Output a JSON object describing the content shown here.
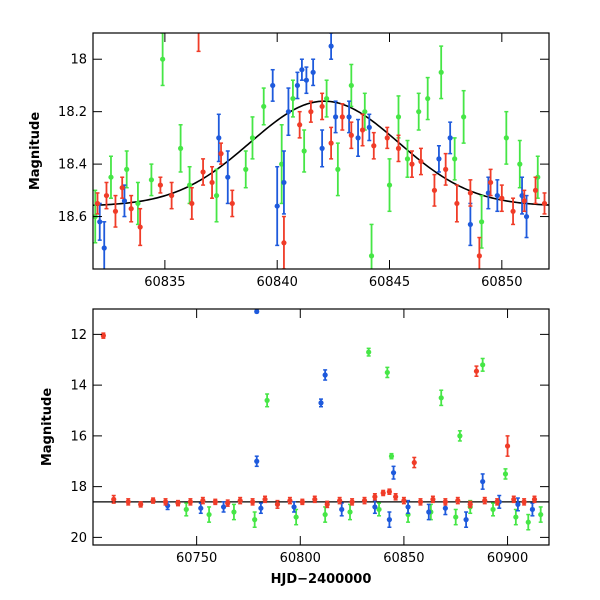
{
  "colors": {
    "red": "#f03c28",
    "blue": "#1e5adc",
    "green": "#46e646",
    "model": "#000000",
    "frame": "#000000"
  },
  "chart_data": [
    {
      "type": "scatter",
      "panel": "top",
      "title": "",
      "xlabel": "",
      "ylabel": "Magnitude",
      "xlim": [
        60831.8,
        60852.1
      ],
      "ylim": [
        18.8,
        17.9
      ],
      "y_inverted": true,
      "grid": false,
      "xticks": [
        60835,
        60840,
        60845,
        60850
      ],
      "xtick_labels": [
        "60835",
        "60840",
        "60845",
        "60850"
      ],
      "yticks": [
        18,
        18.2,
        18.4,
        18.6
      ],
      "ytick_labels": [
        "18",
        "18.2",
        "18.4",
        "18.6"
      ],
      "model_curve": {
        "color": "black",
        "peak_x": 60842.1,
        "peak_mag": 18.16,
        "base_mag": 18.56,
        "width": 3.3
      },
      "series": [
        {
          "color": "red",
          "points": [
            [
              60832.0,
              18.55,
              0.04
            ],
            [
              60832.4,
              18.52,
              0.05
            ],
            [
              60832.8,
              18.58,
              0.06
            ],
            [
              60833.1,
              18.49,
              0.04
            ],
            [
              60833.5,
              18.57,
              0.05
            ],
            [
              60833.9,
              18.64,
              0.07
            ],
            [
              60834.8,
              18.48,
              0.03
            ],
            [
              60835.3,
              18.52,
              0.05
            ],
            [
              60836.2,
              18.55,
              0.06
            ],
            [
              60836.5,
              17.85,
              0.12
            ],
            [
              60836.7,
              18.43,
              0.05
            ],
            [
              60837.1,
              18.47,
              0.06
            ],
            [
              60837.5,
              18.36,
              0.04
            ],
            [
              60838.0,
              18.55,
              0.05
            ],
            [
              60840.3,
              18.7,
              0.1
            ],
            [
              60841.0,
              18.25,
              0.05
            ],
            [
              60841.5,
              18.2,
              0.04
            ],
            [
              60842.0,
              18.18,
              0.05
            ],
            [
              60842.4,
              18.32,
              0.06
            ],
            [
              60842.9,
              18.22,
              0.05
            ],
            [
              60843.3,
              18.29,
              0.05
            ],
            [
              60843.8,
              18.27,
              0.06
            ],
            [
              60844.3,
              18.33,
              0.05
            ],
            [
              60844.9,
              18.3,
              0.04
            ],
            [
              60845.4,
              18.34,
              0.05
            ],
            [
              60846.0,
              18.4,
              0.05
            ],
            [
              60846.4,
              18.39,
              0.05
            ],
            [
              60847.0,
              18.5,
              0.06
            ],
            [
              60847.5,
              18.42,
              0.06
            ],
            [
              60848.0,
              18.55,
              0.07
            ],
            [
              60848.6,
              18.51,
              0.05
            ],
            [
              60849.0,
              18.75,
              0.07
            ],
            [
              60849.5,
              18.47,
              0.05
            ],
            [
              60850.0,
              18.53,
              0.05
            ],
            [
              60850.5,
              18.58,
              0.05
            ],
            [
              60851.0,
              18.54,
              0.04
            ],
            [
              60851.5,
              18.5,
              0.05
            ],
            [
              60851.9,
              18.55,
              0.04
            ]
          ]
        },
        {
          "color": "blue",
          "points": [
            [
              60832.1,
              18.62,
              0.07
            ],
            [
              60832.3,
              18.72,
              0.1
            ],
            [
              60833.2,
              18.54,
              0.06
            ],
            [
              60837.4,
              18.3,
              0.09
            ],
            [
              60837.8,
              18.45,
              0.1
            ],
            [
              60839.8,
              18.1,
              0.06
            ],
            [
              60840.0,
              18.56,
              0.15
            ],
            [
              60840.3,
              18.47,
              0.12
            ],
            [
              60840.5,
              18.2,
              0.09
            ],
            [
              60840.9,
              18.1,
              0.05
            ],
            [
              60841.1,
              18.04,
              0.04
            ],
            [
              60841.3,
              18.08,
              0.05
            ],
            [
              60841.6,
              18.05,
              0.05
            ],
            [
              60842.0,
              18.34,
              0.07
            ],
            [
              60842.4,
              17.95,
              0.05
            ],
            [
              60842.6,
              18.22,
              0.06
            ],
            [
              60843.2,
              18.22,
              0.06
            ],
            [
              60843.6,
              18.3,
              0.07
            ],
            [
              60844.1,
              18.26,
              0.05
            ],
            [
              60847.2,
              18.38,
              0.05
            ],
            [
              60847.7,
              18.3,
              0.06
            ],
            [
              60848.6,
              18.63,
              0.08
            ],
            [
              60849.4,
              18.51,
              0.06
            ],
            [
              60849.8,
              18.52,
              0.06
            ],
            [
              60850.9,
              18.52,
              0.07
            ],
            [
              60851.1,
              18.6,
              0.08
            ]
          ]
        },
        {
          "color": "green",
          "points": [
            [
              60831.9,
              18.6,
              0.1
            ],
            [
              60832.6,
              18.45,
              0.08
            ],
            [
              60833.3,
              18.42,
              0.07
            ],
            [
              60833.8,
              18.55,
              0.08
            ],
            [
              60834.4,
              18.46,
              0.06
            ],
            [
              60834.9,
              18.0,
              0.1
            ],
            [
              60835.7,
              18.34,
              0.09
            ],
            [
              60836.1,
              18.48,
              0.07
            ],
            [
              60837.3,
              18.52,
              0.1
            ],
            [
              60838.6,
              18.42,
              0.07
            ],
            [
              60838.9,
              18.3,
              0.08
            ],
            [
              60839.4,
              18.18,
              0.07
            ],
            [
              60840.2,
              18.4,
              0.15
            ],
            [
              60840.7,
              18.15,
              0.07
            ],
            [
              60841.2,
              18.35,
              0.08
            ],
            [
              60842.2,
              18.15,
              0.07
            ],
            [
              60842.7,
              18.42,
              0.1
            ],
            [
              60843.3,
              18.1,
              0.08
            ],
            [
              60843.9,
              18.2,
              0.07
            ],
            [
              60844.2,
              18.75,
              0.12
            ],
            [
              60845.0,
              18.48,
              0.1
            ],
            [
              60845.4,
              18.22,
              0.08
            ],
            [
              60845.8,
              18.38,
              0.07
            ],
            [
              60846.3,
              18.2,
              0.07
            ],
            [
              60846.7,
              18.15,
              0.08
            ],
            [
              60847.3,
              18.05,
              0.1
            ],
            [
              60847.9,
              18.38,
              0.08
            ],
            [
              60848.3,
              18.22,
              0.1
            ],
            [
              60849.1,
              18.62,
              0.1
            ],
            [
              60850.2,
              18.3,
              0.1
            ],
            [
              60850.8,
              18.4,
              0.09
            ],
            [
              60851.6,
              18.45,
              0.08
            ]
          ]
        }
      ]
    },
    {
      "type": "scatter",
      "panel": "bottom",
      "title": "",
      "xlabel": "HJD−2400000",
      "ylabel": "Magnitude",
      "xlim": [
        60700,
        60920
      ],
      "ylim": [
        20.3,
        11.0
      ],
      "y_inverted": true,
      "grid": false,
      "xticks": [
        60750,
        60800,
        60850,
        60900
      ],
      "xtick_labels": [
        "60750",
        "60800",
        "60850",
        "60900"
      ],
      "yticks": [
        12,
        14,
        16,
        18,
        20
      ],
      "ytick_labels": [
        "12",
        "14",
        "16",
        "18",
        "20"
      ],
      "baseline_mag": 18.6,
      "series": [
        {
          "color": "red",
          "points": [
            [
              60705,
              12.05,
              0.1
            ],
            [
              60710,
              18.5,
              0.15
            ],
            [
              60717,
              18.6,
              0.12
            ],
            [
              60723,
              18.7,
              0.1
            ],
            [
              60729,
              18.55,
              0.1
            ],
            [
              60735,
              18.6,
              0.12
            ],
            [
              60741,
              18.65,
              0.1
            ],
            [
              60747,
              18.6,
              0.12
            ],
            [
              60753,
              18.55,
              0.12
            ],
            [
              60759,
              18.6,
              0.1
            ],
            [
              60765,
              18.65,
              0.12
            ],
            [
              60771,
              18.55,
              0.12
            ],
            [
              60777,
              18.6,
              0.12
            ],
            [
              60783,
              18.5,
              0.12
            ],
            [
              60789,
              18.7,
              0.15
            ],
            [
              60795,
              18.55,
              0.12
            ],
            [
              60801,
              18.6,
              0.1
            ],
            [
              60807,
              18.5,
              0.12
            ],
            [
              60813,
              18.7,
              0.12
            ],
            [
              60819,
              18.55,
              0.12
            ],
            [
              60825,
              18.6,
              0.12
            ],
            [
              60831,
              18.55,
              0.12
            ],
            [
              60836,
              18.4,
              0.12
            ],
            [
              60840,
              18.25,
              0.1
            ],
            [
              60843,
              18.2,
              0.1
            ],
            [
              60846,
              18.4,
              0.12
            ],
            [
              60850,
              18.55,
              0.12
            ],
            [
              60855,
              17.05,
              0.2
            ],
            [
              60858,
              18.6,
              0.12
            ],
            [
              60864,
              18.5,
              0.12
            ],
            [
              60870,
              18.6,
              0.12
            ],
            [
              60876,
              18.55,
              0.12
            ],
            [
              60882,
              18.7,
              0.12
            ],
            [
              60885,
              13.45,
              0.2
            ],
            [
              60889,
              18.55,
              0.12
            ],
            [
              60895,
              18.6,
              0.12
            ],
            [
              60900,
              16.4,
              0.4
            ],
            [
              60903,
              18.5,
              0.12
            ],
            [
              60908,
              18.6,
              0.12
            ],
            [
              60913,
              18.5,
              0.12
            ]
          ]
        },
        {
          "color": "blue",
          "points": [
            [
              60736,
              18.75,
              0.15
            ],
            [
              60752,
              18.85,
              0.2
            ],
            [
              60763,
              18.8,
              0.2
            ],
            [
              60779,
              11.1,
              0.05
            ],
            [
              60779,
              17.0,
              0.2
            ],
            [
              60781,
              18.85,
              0.2
            ],
            [
              60797,
              18.8,
              0.2
            ],
            [
              60810,
              14.7,
              0.15
            ],
            [
              60812,
              13.6,
              0.2
            ],
            [
              60820,
              18.9,
              0.25
            ],
            [
              60836,
              18.8,
              0.25
            ],
            [
              60843,
              19.3,
              0.3
            ],
            [
              60845,
              17.45,
              0.25
            ],
            [
              60852,
              18.8,
              0.25
            ],
            [
              60862,
              19.0,
              0.3
            ],
            [
              60870,
              18.85,
              0.25
            ],
            [
              60880,
              19.3,
              0.3
            ],
            [
              60888,
              17.8,
              0.3
            ],
            [
              60896,
              18.6,
              0.25
            ],
            [
              60905,
              18.7,
              0.25
            ],
            [
              60912,
              18.9,
              0.25
            ]
          ]
        },
        {
          "color": "green",
          "points": [
            [
              60745,
              18.9,
              0.25
            ],
            [
              60756,
              19.1,
              0.3
            ],
            [
              60768,
              19.0,
              0.3
            ],
            [
              60778,
              19.3,
              0.3
            ],
            [
              60784,
              14.6,
              0.25
            ],
            [
              60798,
              19.2,
              0.3
            ],
            [
              60812,
              19.1,
              0.3
            ],
            [
              60824,
              19.0,
              0.3
            ],
            [
              60833,
              12.7,
              0.15
            ],
            [
              60838,
              18.9,
              0.25
            ],
            [
              60842,
              13.5,
              0.2
            ],
            [
              60844,
              16.8,
              0.1
            ],
            [
              60852,
              19.1,
              0.3
            ],
            [
              60863,
              19.0,
              0.3
            ],
            [
              60868,
              14.5,
              0.3
            ],
            [
              60875,
              19.2,
              0.3
            ],
            [
              60877,
              16.0,
              0.2
            ],
            [
              60882,
              18.8,
              0.25
            ],
            [
              60888,
              13.2,
              0.25
            ],
            [
              60893,
              18.9,
              0.25
            ],
            [
              60899,
              17.5,
              0.2
            ],
            [
              60904,
              19.2,
              0.3
            ],
            [
              60910,
              19.4,
              0.3
            ],
            [
              60916,
              19.1,
              0.3
            ]
          ]
        }
      ]
    }
  ]
}
